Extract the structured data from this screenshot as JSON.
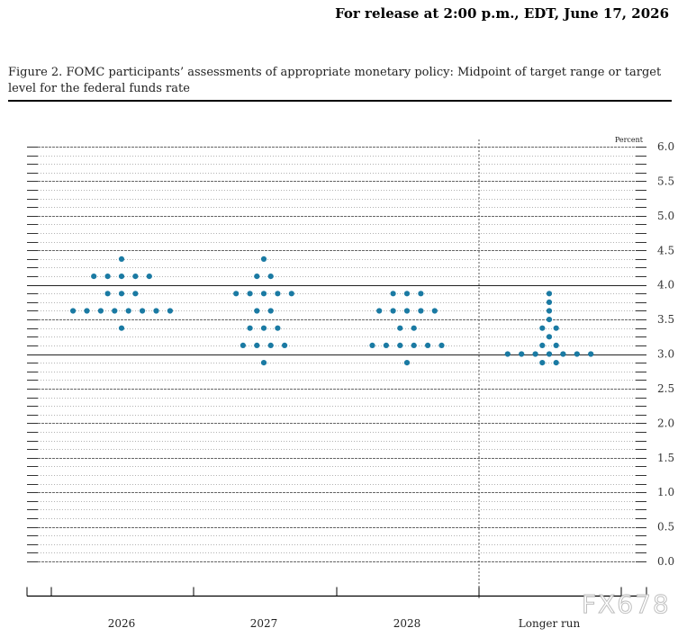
{
  "header": {
    "release": "For release at 2:00 p.m., EDT, June 17, 2026"
  },
  "figure": {
    "title": "Figure 2. FOMC participants’ assessments of appropriate monetary policy: Midpoint of target range or target level for the federal funds rate"
  },
  "watermark": "FX678",
  "colors": {
    "dot": "#1a7aa3",
    "grid": "#777777",
    "axis": "#000000"
  },
  "chart_data": {
    "type": "scatter",
    "title": "Figure 2. FOMC participants’ assessments of appropriate monetary policy: Midpoint of target range or target level for the federal funds rate",
    "ylabel": "Percent",
    "ylim": [
      0,
      6
    ],
    "yticks": [
      "6.0",
      "5.5",
      "5.0",
      "4.5",
      "4.0",
      "3.5",
      "3.0",
      "2.5",
      "2.0",
      "1.5",
      "1.0",
      "0.5",
      "0.0"
    ],
    "ytick_values": [
      6.0,
      5.5,
      5.0,
      4.5,
      4.0,
      3.5,
      3.0,
      2.5,
      2.0,
      1.5,
      1.0,
      0.5,
      0.0
    ],
    "grid": true,
    "categories": [
      "2026",
      "2027",
      "2028",
      "Longer run"
    ],
    "dots": [
      {
        "category": "2026",
        "rates": [
          {
            "value": 4.375,
            "count": 1
          },
          {
            "value": 4.125,
            "count": 5
          },
          {
            "value": 3.875,
            "count": 3
          },
          {
            "value": 3.625,
            "count": 8
          },
          {
            "value": 3.375,
            "count": 1
          }
        ]
      },
      {
        "category": "2027",
        "rates": [
          {
            "value": 4.375,
            "count": 1
          },
          {
            "value": 4.125,
            "count": 2
          },
          {
            "value": 3.875,
            "count": 5
          },
          {
            "value": 3.625,
            "count": 2
          },
          {
            "value": 3.375,
            "count": 3
          },
          {
            "value": 3.125,
            "count": 4
          },
          {
            "value": 2.875,
            "count": 1
          }
        ]
      },
      {
        "category": "2028",
        "rates": [
          {
            "value": 3.875,
            "count": 3
          },
          {
            "value": 3.625,
            "count": 5
          },
          {
            "value": 3.375,
            "count": 2
          },
          {
            "value": 3.125,
            "count": 6
          },
          {
            "value": 2.875,
            "count": 1
          }
        ]
      },
      {
        "category": "Longer run",
        "rates": [
          {
            "value": 3.875,
            "count": 1
          },
          {
            "value": 3.75,
            "count": 1
          },
          {
            "value": 3.625,
            "count": 1
          },
          {
            "value": 3.5,
            "count": 1
          },
          {
            "value": 3.375,
            "count": 2
          },
          {
            "value": 3.25,
            "count": 1
          },
          {
            "value": 3.125,
            "count": 2
          },
          {
            "value": 3.0,
            "count": 7
          },
          {
            "value": 2.875,
            "count": 2
          }
        ]
      }
    ]
  }
}
